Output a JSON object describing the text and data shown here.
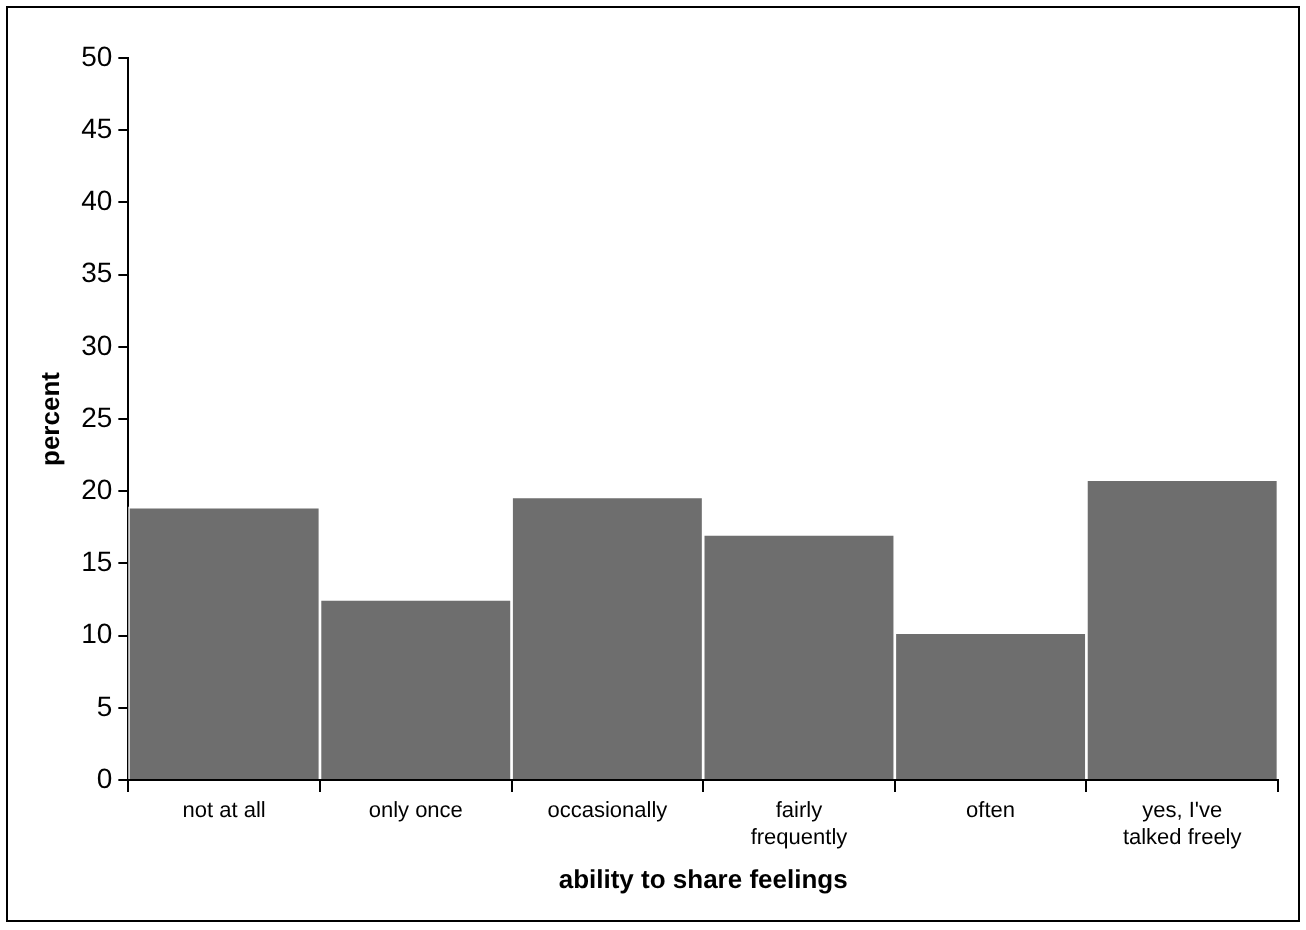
{
  "chart_data": {
    "type": "bar",
    "xlabel": "ability to share feelings",
    "ylabel": "percent",
    "categories": [
      "not at all",
      "only once",
      "occasionally",
      "fairly\nfrequently",
      "often",
      "yes, I've\ntalked freely"
    ],
    "values": [
      18.9,
      12.5,
      19.6,
      17.0,
      10.2,
      20.8
    ],
    "color": "#6e6e6e",
    "ylim": [
      0,
      50
    ],
    "yticks": [
      0,
      5,
      10,
      15,
      20,
      25,
      30,
      35,
      40,
      45,
      50
    ],
    "grid": false,
    "legend": false
  }
}
